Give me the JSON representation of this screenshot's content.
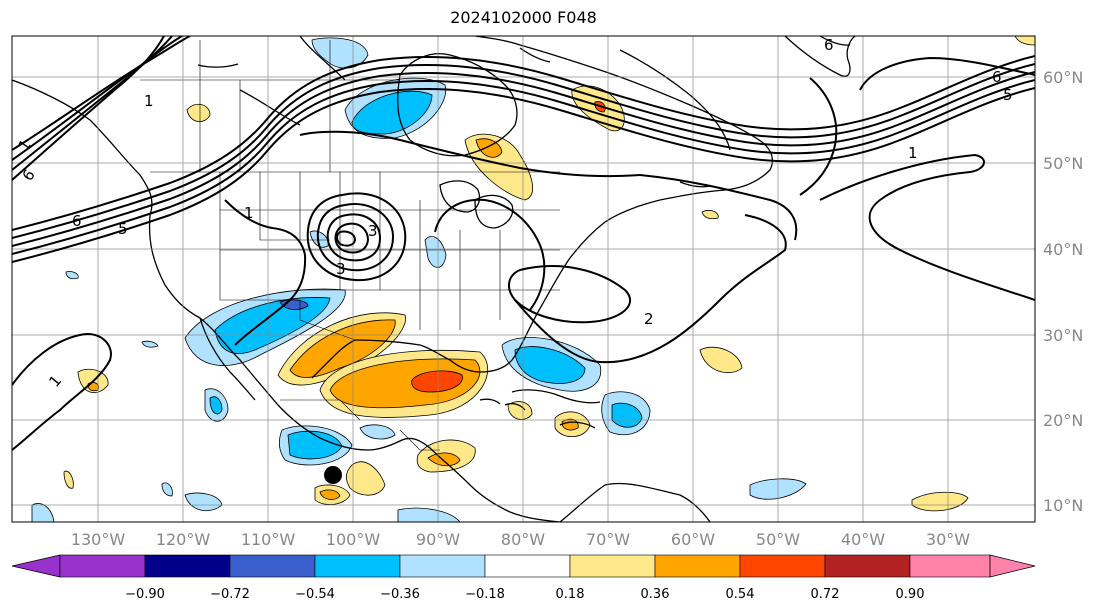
{
  "title": "2024102000 F048",
  "map": {
    "lon_labels": [
      "130°W",
      "120°W",
      "110°W",
      "100°W",
      "90°W",
      "80°W",
      "70°W",
      "60°W",
      "50°W",
      "40°W",
      "30°W"
    ],
    "lat_labels": [
      "60°N",
      "50°N",
      "40°N",
      "30°N",
      "20°N",
      "10°N"
    ],
    "contour_labels": [
      "1",
      "6",
      "6",
      "5",
      "1",
      "6",
      "5",
      "1",
      "2",
      "1",
      "6",
      "1",
      "3",
      "3"
    ]
  },
  "colorbar": {
    "ticks": [
      "−0.90",
      "−0.72",
      "−0.54",
      "−0.36",
      "−0.18",
      "0.18",
      "0.36",
      "0.54",
      "0.72",
      "0.90"
    ],
    "colors": [
      "#9932cc",
      "#00008b",
      "#3a5fcd",
      "#00bfff",
      "#b0e2ff",
      "#ffffff",
      "#ffe88a",
      "#ffa500",
      "#ff4500",
      "#b22222",
      "#ff82ab"
    ]
  }
}
